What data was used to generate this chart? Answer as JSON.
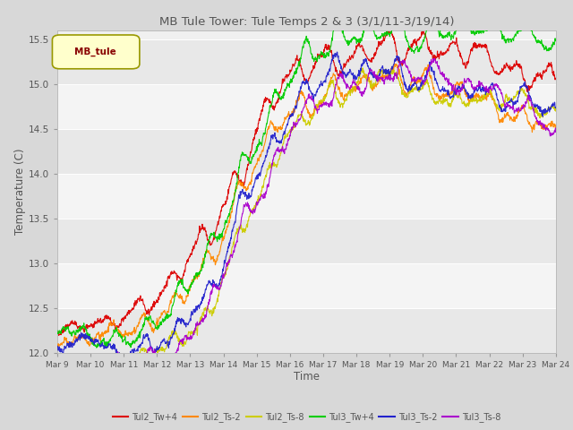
{
  "title": "MB Tule Tower: Tule Temps 2 & 3 (3/1/11-3/19/14)",
  "xlabel": "Time",
  "ylabel": "Temperature (C)",
  "ylim": [
    12.0,
    15.6
  ],
  "yticks": [
    12.0,
    12.5,
    13.0,
    13.5,
    14.0,
    14.5,
    15.0,
    15.5
  ],
  "xtick_labels": [
    "Mar 9",
    "Mar 10",
    "Mar 11",
    "Mar 12",
    "Mar 13",
    "Mar 14",
    "Mar 15",
    "Mar 16",
    "Mar 17",
    "Mar 18",
    "Mar 19",
    "Mar 20",
    "Mar 21",
    "Mar 22",
    "Mar 23",
    "Mar 24"
  ],
  "legend_label": "MB_tule",
  "series_colors": [
    "#dd0000",
    "#ff8800",
    "#cccc00",
    "#00cc00",
    "#2222cc",
    "#aa00cc"
  ],
  "series_names": [
    "Tul2_Tw+4",
    "Tul2_Ts-2",
    "Tul2_Ts-8",
    "Tul3_Tw+4",
    "Tul3_Ts-2",
    "Tul3_Ts-8"
  ],
  "band_colors": [
    "#e8e8e8",
    "#f4f4f4"
  ],
  "fig_facecolor": "#d8d8d8",
  "n_points": 1500
}
